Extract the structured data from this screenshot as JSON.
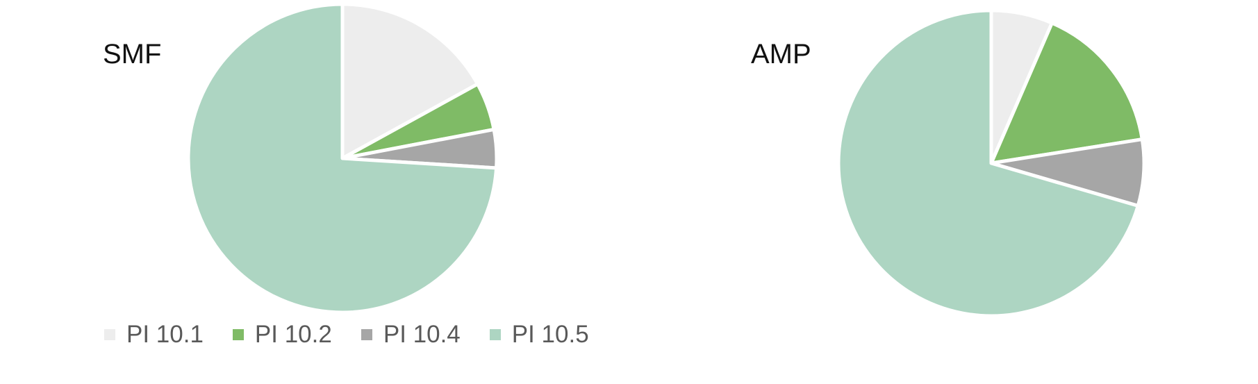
{
  "chart_data": [
    {
      "type": "pie",
      "title": "SMF",
      "categories": [
        "PI 10.1",
        "PI 10.2",
        "PI 10.4",
        "PI 10.5"
      ],
      "values": [
        17,
        5,
        4,
        74
      ],
      "colors": [
        "#ededed",
        "#7fbb66",
        "#a6a6a6",
        "#add5c2"
      ],
      "legend": "bottom"
    },
    {
      "type": "pie",
      "title": "AMP",
      "categories": [
        "PI 10.1",
        "PI 10.2",
        "PI 10.4",
        "PI 10.5"
      ],
      "values": [
        6.5,
        16,
        7,
        70.5
      ],
      "colors": [
        "#ededed",
        "#7fbb66",
        "#a6a6a6",
        "#add5c2"
      ]
    }
  ]
}
